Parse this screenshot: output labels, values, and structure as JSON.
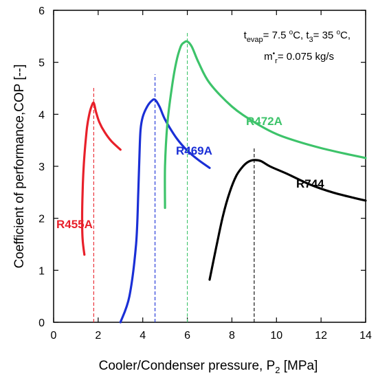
{
  "chart_data": {
    "type": "line",
    "xlabel": "Cooler/Condenser pressure, P",
    "xlabel_sub": "2",
    "xlabel_unit": " [MPa]",
    "ylabel": "Coefficient of performance,COP [--]",
    "xlim": [
      0,
      14
    ],
    "ylim": [
      0,
      6
    ],
    "x_ticks": [
      "0",
      "2",
      "4",
      "6",
      "8",
      "10",
      "12",
      "14"
    ],
    "y_ticks": [
      "0",
      "1",
      "2",
      "3",
      "4",
      "5",
      "6"
    ],
    "grid": false,
    "annotation": {
      "line1": [
        {
          "text": "t",
          "sub": false
        },
        {
          "text": "evap",
          "sub": true
        },
        {
          "text": "= 7.5 ",
          "sub": false
        },
        {
          "text": "o",
          "sup": true
        },
        {
          "text": "C, t",
          "sub": false
        },
        {
          "text": "3",
          "sub": true
        },
        {
          "text": "= 35 ",
          "sub": false
        },
        {
          "text": "o",
          "sup": true
        },
        {
          "text": "C,",
          "sub": false
        }
      ],
      "line2": [
        {
          "text": "m",
          "sub": false
        },
        {
          "text": "•",
          "sup": true
        },
        {
          "text": "r",
          "sub": true
        },
        {
          "text": "= 0.075 kg/s",
          "sub": false
        }
      ]
    },
    "series": [
      {
        "name": "R455A",
        "color": "#e8202a",
        "peak_x": 1.8,
        "x": [
          1.38,
          1.3,
          1.28,
          1.3,
          1.35,
          1.42,
          1.5,
          1.6,
          1.7,
          1.8,
          1.9,
          2.05,
          2.3,
          2.6,
          3.0
        ],
        "y": [
          1.3,
          1.6,
          2.0,
          2.5,
          3.0,
          3.4,
          3.75,
          4.0,
          4.15,
          4.22,
          4.05,
          3.85,
          3.65,
          3.48,
          3.32
        ]
      },
      {
        "name": "R469A",
        "color": "#1a2fd6",
        "peak_x": 4.55,
        "x": [
          3.0,
          3.4,
          3.7,
          3.8,
          3.85,
          3.9,
          4.0,
          4.2,
          4.4,
          4.55,
          4.75,
          5.0,
          5.5,
          6.0,
          6.5,
          7.0
        ],
        "y": [
          0.0,
          0.5,
          1.5,
          2.5,
          3.2,
          3.7,
          3.95,
          4.15,
          4.26,
          4.28,
          4.15,
          3.9,
          3.55,
          3.3,
          3.12,
          2.97
        ]
      },
      {
        "name": "R472A",
        "color": "#3dc36a",
        "peak_x": 6.0,
        "x": [
          5.0,
          5.0,
          5.1,
          5.3,
          5.5,
          5.7,
          5.85,
          6.0,
          6.2,
          6.5,
          7.0,
          8.0,
          9.0,
          10.0,
          11.0,
          12.0,
          13.0,
          14.0
        ],
        "y": [
          2.2,
          3.0,
          3.8,
          4.5,
          5.0,
          5.3,
          5.38,
          5.4,
          5.3,
          5.0,
          4.6,
          4.15,
          3.85,
          3.62,
          3.47,
          3.35,
          3.25,
          3.16
        ]
      },
      {
        "name": "R744",
        "color": "#000000",
        "peak_x": 9.0,
        "x": [
          7.0,
          7.3,
          7.6,
          7.9,
          8.2,
          8.5,
          8.75,
          9.0,
          9.3,
          9.7,
          10.5,
          11.5,
          12.5,
          13.5,
          14.0
        ],
        "y": [
          0.82,
          1.45,
          2.05,
          2.5,
          2.82,
          3.0,
          3.09,
          3.12,
          3.1,
          3.0,
          2.85,
          2.65,
          2.5,
          2.39,
          2.34
        ]
      }
    ]
  }
}
